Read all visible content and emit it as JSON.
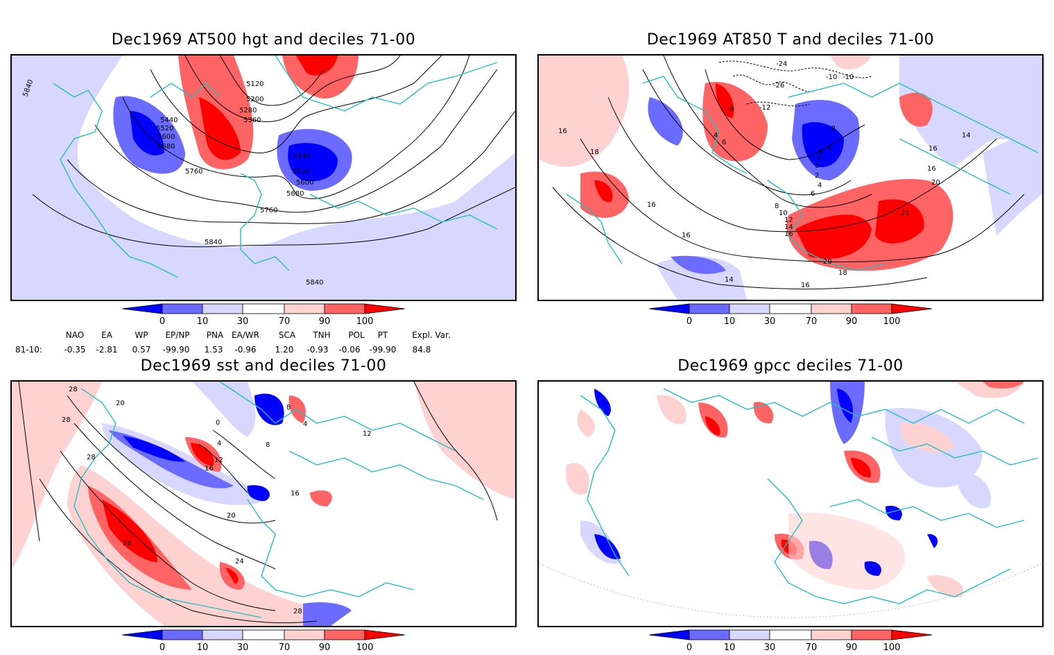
{
  "colors": {
    "dark_blue": "#0000ff",
    "mid_blue": "#6b6bff",
    "light_blue": "#d7d7ff",
    "light_red": "#ffd2d2",
    "mid_red": "#ff6464",
    "dark_red": "#ff0000",
    "coast": "#20c0c0",
    "contour": "#000000"
  },
  "panels": [
    {
      "id": "tl",
      "title": "Dec1969 AT500 hgt and deciles 71-00",
      "contour_labels": [
        "5120",
        "5200",
        "5280",
        "5360",
        "5440",
        "5520",
        "5600",
        "5680",
        "5760",
        "5840",
        "5440",
        "5520",
        "5600",
        "5680",
        "5760",
        "5840",
        "5840"
      ]
    },
    {
      "id": "tr",
      "title": "Dec1969 AT850 T and deciles 71-00",
      "contour_labels": [
        "-24",
        "-26",
        "-12",
        "-10",
        "-10",
        "-8",
        "-8",
        "4",
        "6",
        "16",
        "18",
        "16",
        "16",
        "14",
        "16",
        "16",
        "20",
        "22",
        "20",
        "18",
        "16",
        "14",
        "-6",
        "-4",
        "-2",
        "0",
        "2",
        "4",
        "6",
        "8",
        "10",
        "12",
        "14",
        "16"
      ]
    },
    {
      "id": "bl",
      "title": "Dec1969 sst and deciles 71-00",
      "contour_labels": [
        "28",
        "20",
        "28",
        "28",
        "0",
        "4",
        "8",
        "12",
        "16",
        "4",
        "8",
        "12",
        "16",
        "20",
        "24",
        "28",
        "28"
      ]
    },
    {
      "id": "br",
      "title": "Dec1969 gpcc deciles 71-00",
      "contour_labels": []
    }
  ],
  "colorbar": {
    "ticks": [
      "0",
      "10",
      "30",
      "70",
      "90",
      "100"
    ]
  },
  "indices": {
    "header": [
      "NAO",
      "EA",
      "WP",
      "EP/NP",
      "PNA",
      "EA/WR",
      "SCA",
      "TNH",
      "POL",
      "PT",
      "Expl. Var."
    ],
    "row_label": "81-10:",
    "values": [
      "-0.35",
      "-2.81",
      "0.57",
      "-99.90",
      "1.53",
      "-0.96",
      "1.20",
      "-0.93",
      "-0.06",
      "-99.90",
      "84.8"
    ]
  }
}
